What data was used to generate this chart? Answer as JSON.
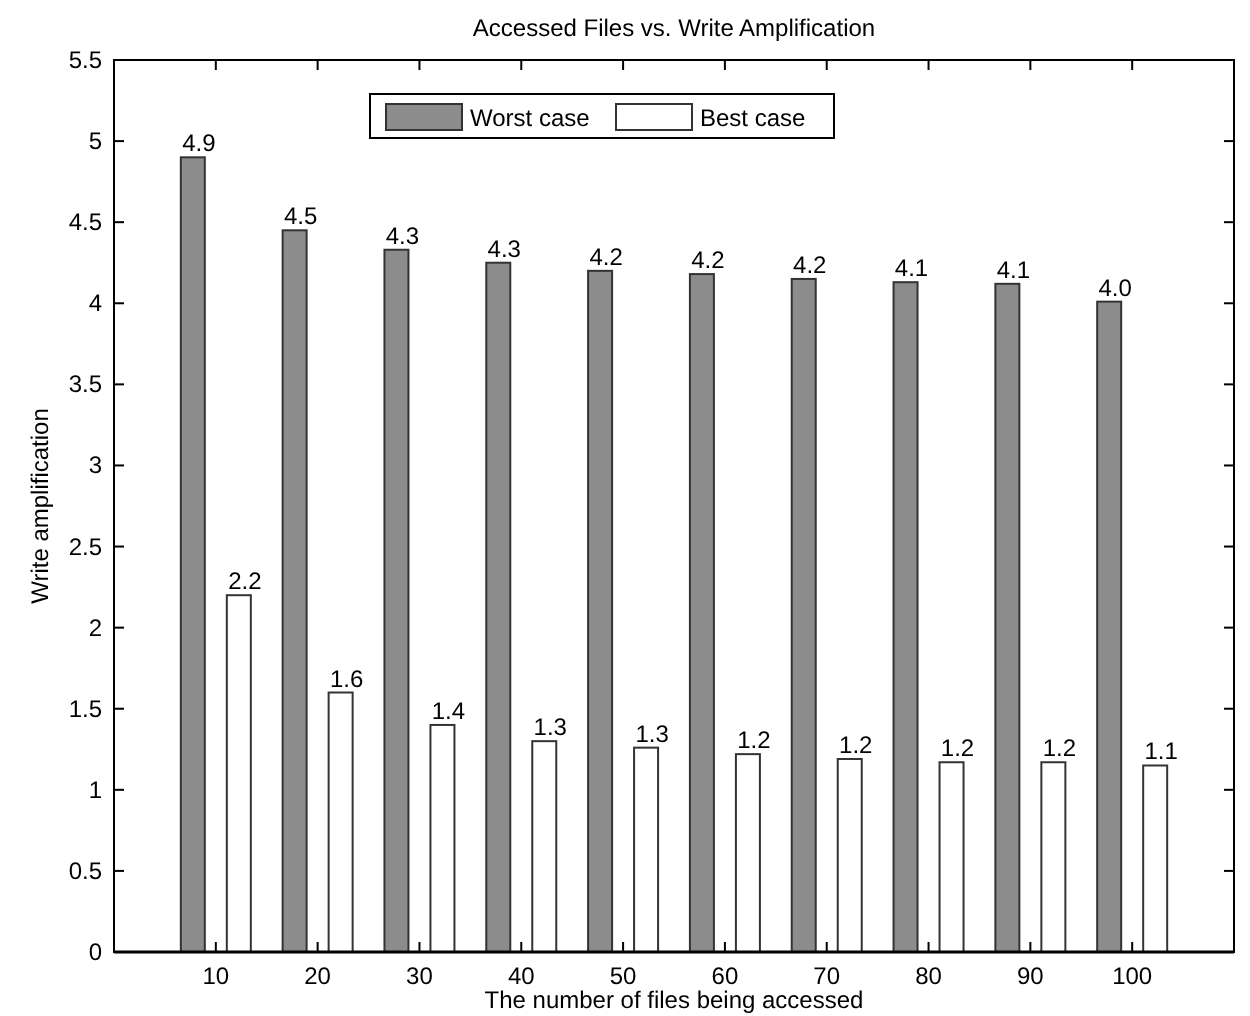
{
  "chart_data": {
    "type": "bar",
    "title": "Accessed Files vs. Write Amplification",
    "xlabel": "The number of files being accessed",
    "ylabel": "Write amplification",
    "categories": [
      "10",
      "20",
      "30",
      "40",
      "50",
      "60",
      "70",
      "80",
      "90",
      "100"
    ],
    "series": [
      {
        "name": "Worst case",
        "color": "#8c8c8c",
        "values": [
          4.9,
          4.45,
          4.33,
          4.25,
          4.2,
          4.18,
          4.15,
          4.13,
          4.12,
          4.01
        ],
        "value_labels": [
          "4.9",
          "4.5",
          "4.3",
          "4.3",
          "4.2",
          "4.2",
          "4.2",
          "4.1",
          "4.1",
          "4.0"
        ]
      },
      {
        "name": "Best case",
        "color": "#ffffff",
        "values": [
          2.2,
          1.6,
          1.4,
          1.3,
          1.26,
          1.22,
          1.19,
          1.17,
          1.17,
          1.15
        ],
        "value_labels": [
          "2.2",
          "1.6",
          "1.4",
          "1.3",
          "1.3",
          "1.2",
          "1.2",
          "1.2",
          "1.2",
          "1.1"
        ]
      }
    ],
    "ylim": [
      0,
      5.5
    ],
    "yticks": [
      0,
      0.5,
      1,
      1.5,
      2,
      2.5,
      3,
      3.5,
      4,
      4.5,
      5,
      5.5
    ],
    "legend": "top",
    "grid": false
  }
}
